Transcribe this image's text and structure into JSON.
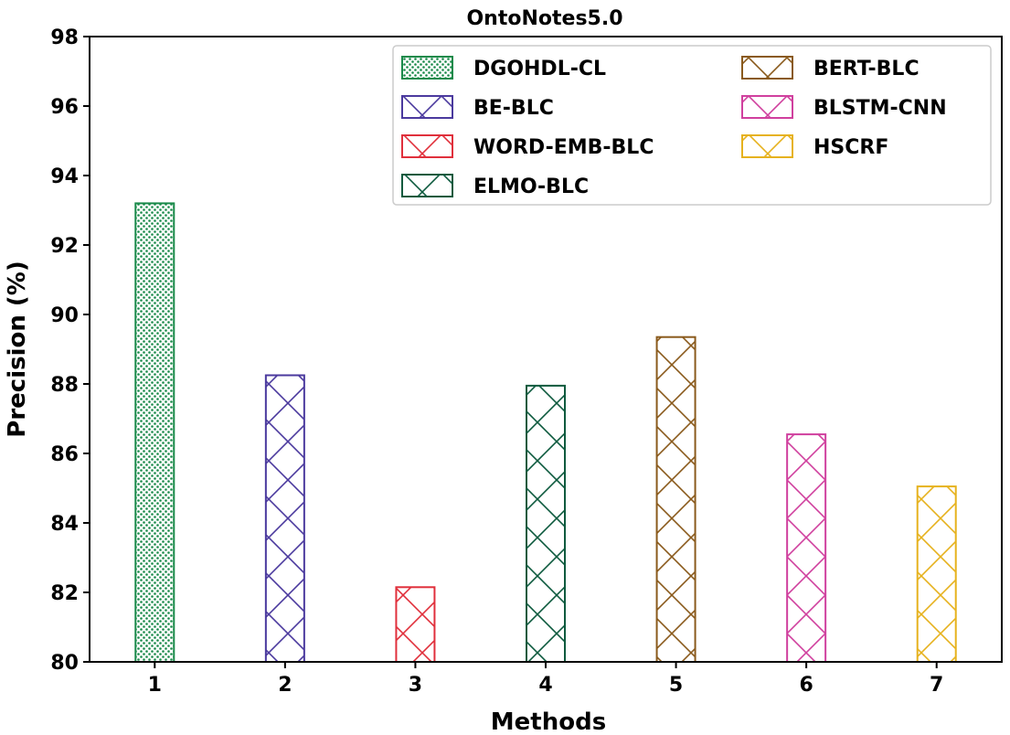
{
  "chart_data": {
    "type": "bar",
    "title": "OntoNotes5.0",
    "xlabel": "Methods",
    "ylabel": "Precision (%)",
    "ylim": [
      80,
      98
    ],
    "yticks": [
      80,
      82,
      84,
      86,
      88,
      90,
      92,
      94,
      96,
      98
    ],
    "categories": [
      "1",
      "2",
      "3",
      "4",
      "5",
      "6",
      "7"
    ],
    "grid": false,
    "legend_placement": "top-right",
    "series": [
      {
        "name": "DGOHDL-CL",
        "value": 93.2,
        "color": "#1a8a4a",
        "hatch": "dots"
      },
      {
        "name": "BE-BLC",
        "value": 88.25,
        "color": "#4b3a9e",
        "hatch": "cross"
      },
      {
        "name": "WORD-EMB-BLC",
        "value": 82.15,
        "color": "#e0303c",
        "hatch": "cross"
      },
      {
        "name": "ELMO-BLC",
        "value": 87.95,
        "color": "#0d5a3e",
        "hatch": "cross"
      },
      {
        "name": "BERT-BLC",
        "value": 89.35,
        "color": "#8a5a1c",
        "hatch": "cross"
      },
      {
        "name": "BLSTM-CNN",
        "value": 86.55,
        "color": "#d0409e",
        "hatch": "cross"
      },
      {
        "name": "HSCRF",
        "value": 85.05,
        "color": "#e6b21e",
        "hatch": "cross"
      }
    ]
  }
}
